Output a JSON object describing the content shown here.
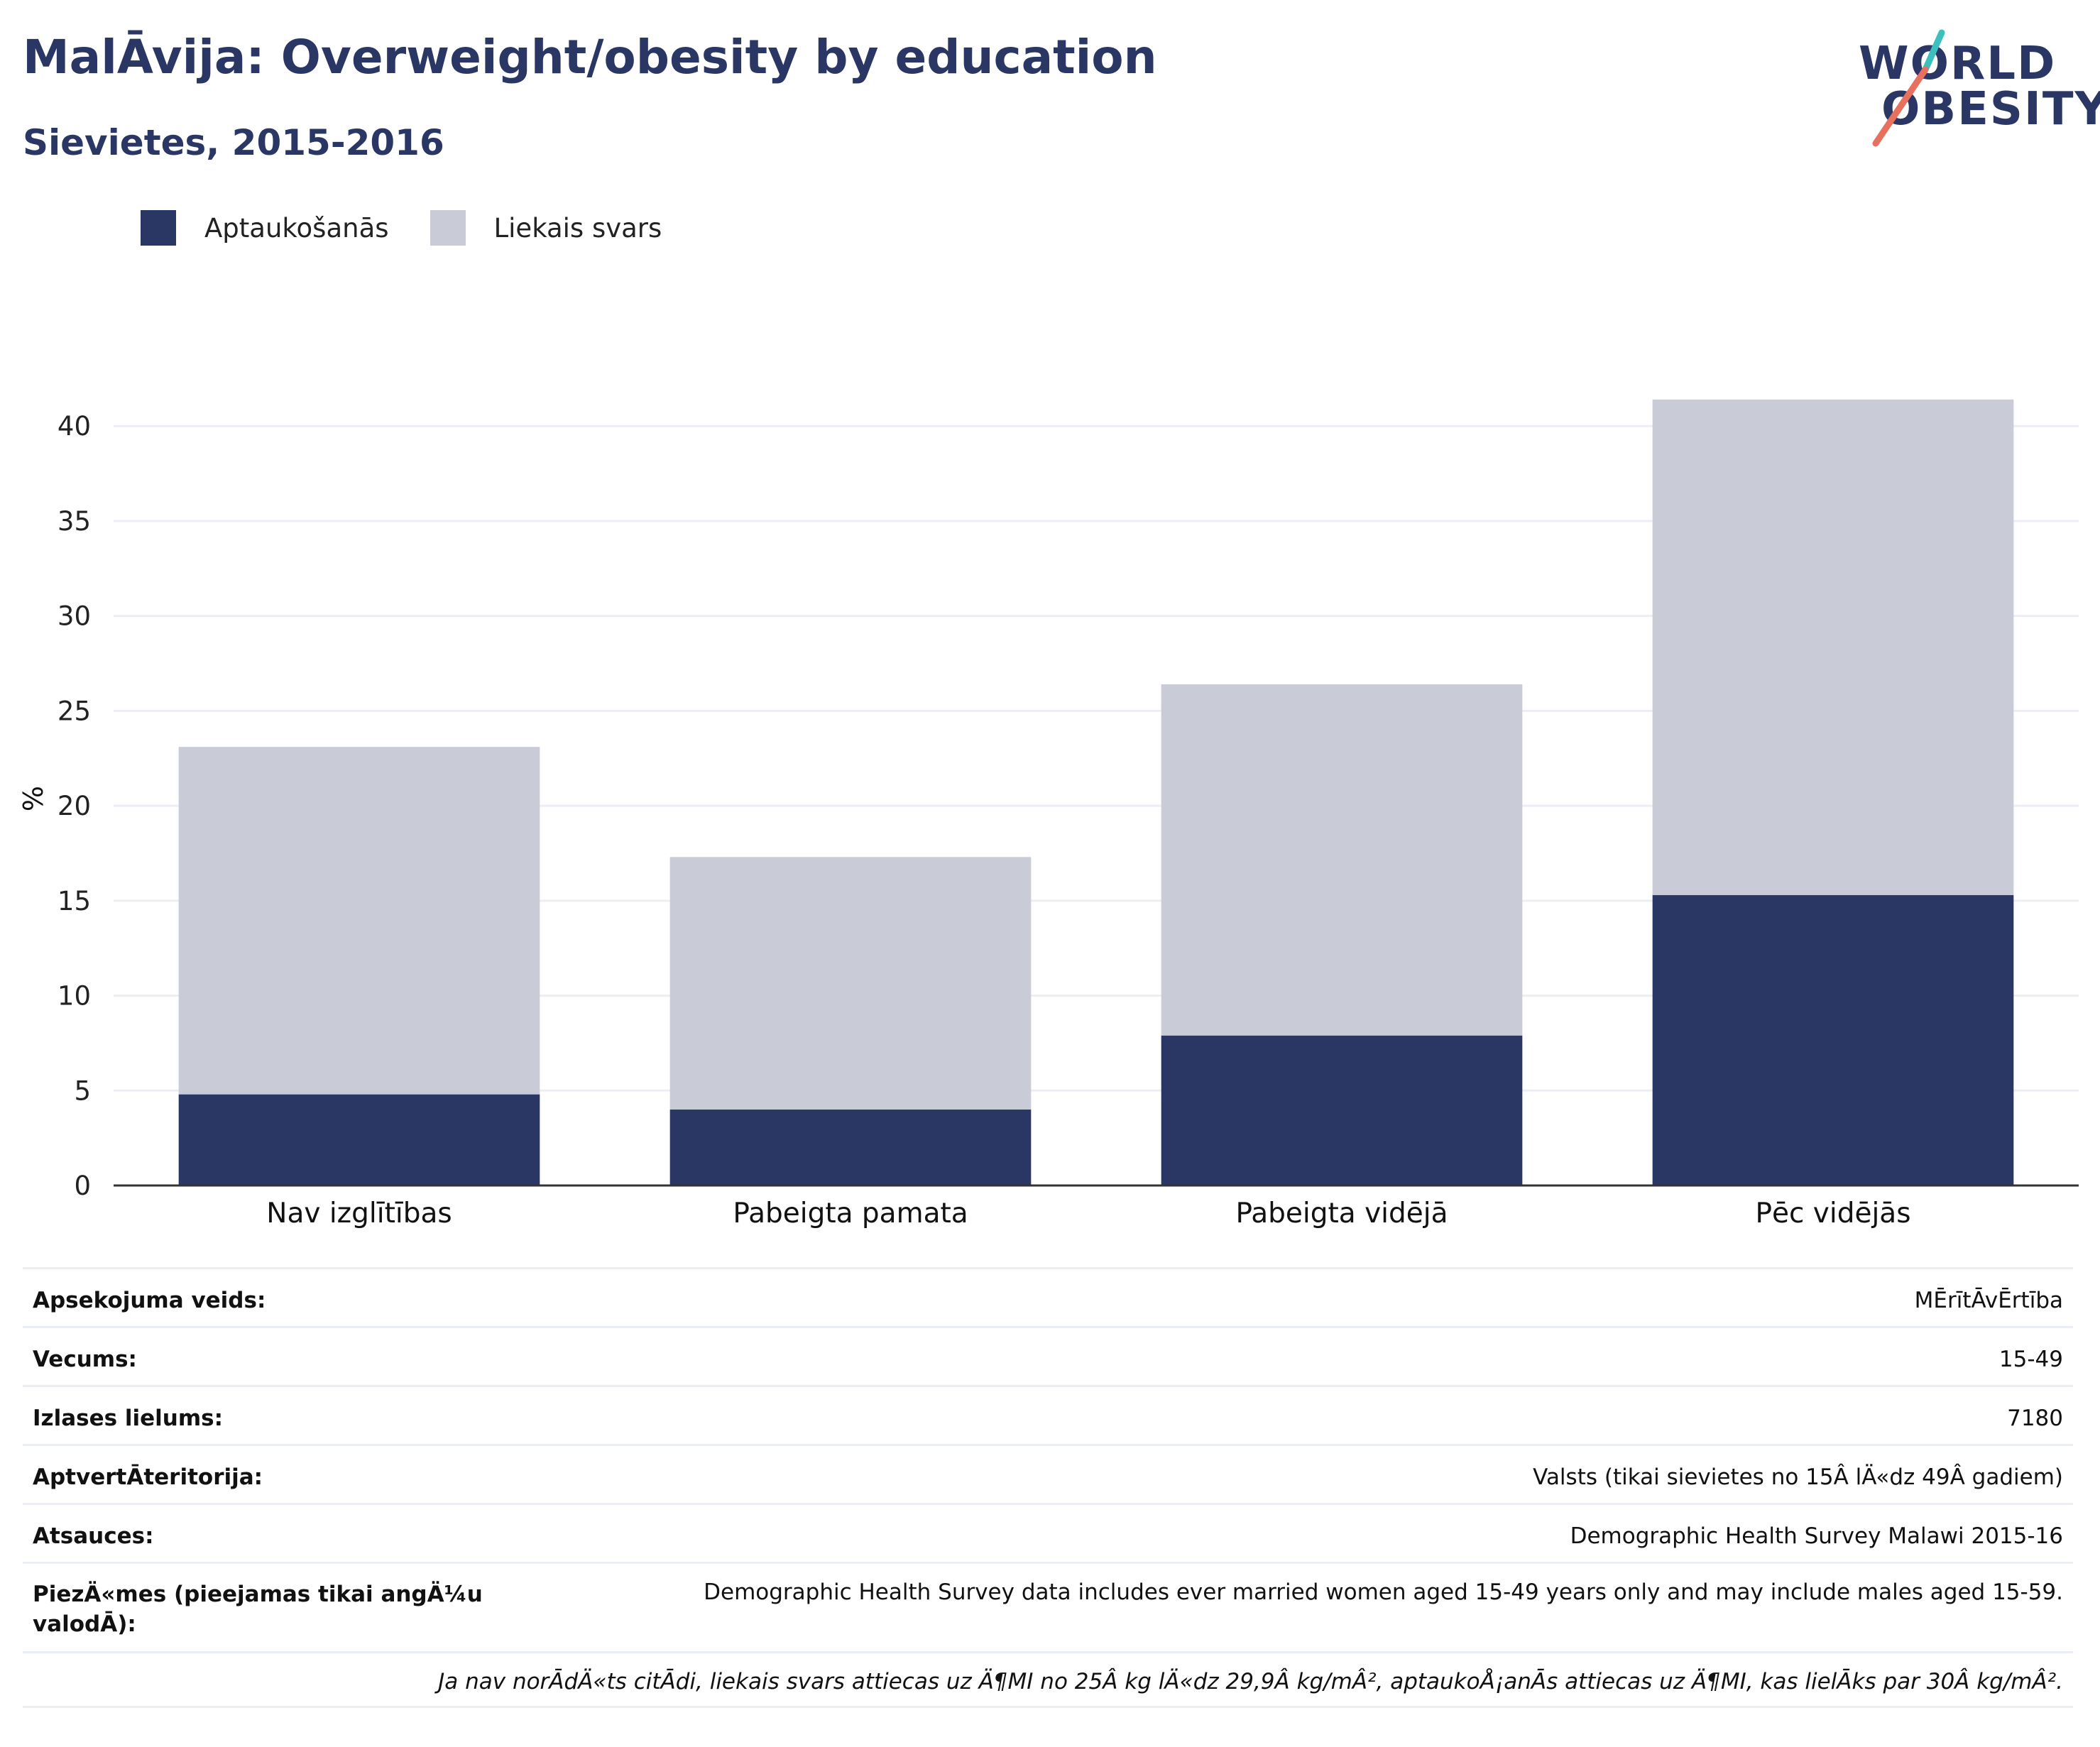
{
  "header": {
    "title": "MalĀvija: Overweight/obesity by education",
    "subtitle": "Sievietes, 2015-2016"
  },
  "logo": {
    "line1": "WORLD",
    "line2": "OBESITY",
    "colors": {
      "text": "#2a3663",
      "accent_teal": "#3dbfbf",
      "accent_coral": "#e8705f"
    }
  },
  "legend": [
    {
      "label": "Aptaukošanās",
      "color": "#2a3663"
    },
    {
      "label": "Liekais svars",
      "color": "#c9cbd7"
    }
  ],
  "chart_data": {
    "type": "bar",
    "stacked": true,
    "ylabel": "%",
    "ylim": [
      0,
      43
    ],
    "yticks": [
      0,
      5,
      10,
      15,
      20,
      25,
      30,
      35,
      40
    ],
    "grid": true,
    "legend_placement": "top-left",
    "categories": [
      "Nav izglītības",
      "Pabeigta pamata",
      "Pabeigta vidējā",
      "Pēc vidējās"
    ],
    "series": [
      {
        "name": "Aptaukošanās",
        "color": "#2a3663",
        "values": [
          4.8,
          4.0,
          7.9,
          15.3
        ]
      },
      {
        "name": "Liekais svars",
        "color": "#c9cbd7",
        "values": [
          18.3,
          13.3,
          18.5,
          26.1
        ]
      }
    ]
  },
  "meta": [
    {
      "key": "Apsekojuma veids:",
      "value": "MĒrītĀvĒrtība"
    },
    {
      "key": "Vecums:",
      "value": "15-49"
    },
    {
      "key": "Izlases lielums:",
      "value": "7180"
    },
    {
      "key": "AptvertĀteritorija:",
      "value": "Valsts (tikai sievietes no 15Â lÄ«dz 49Â gadiem)"
    },
    {
      "key": "Atsauces:",
      "value": "Demographic Health Survey Malawi 2015-16"
    },
    {
      "key": "PiezÄ«mes (pieejamas tikai angÄ¼u valodĀ):",
      "value": "Demographic Health Survey data includes ever married women aged 15-49 years only and may include males aged 15-59."
    }
  ],
  "footnote": "Ja nav norĀdÄ«ts citĀdi, liekais svars attiecas uz Ä¶MI no 25Â kg lÄ«dz 29,9Â kg/mÂ², aptaukoÅ¡anĀs attiecas uz Ä¶MI, kas lielĀks par 30Â kg/mÂ²."
}
